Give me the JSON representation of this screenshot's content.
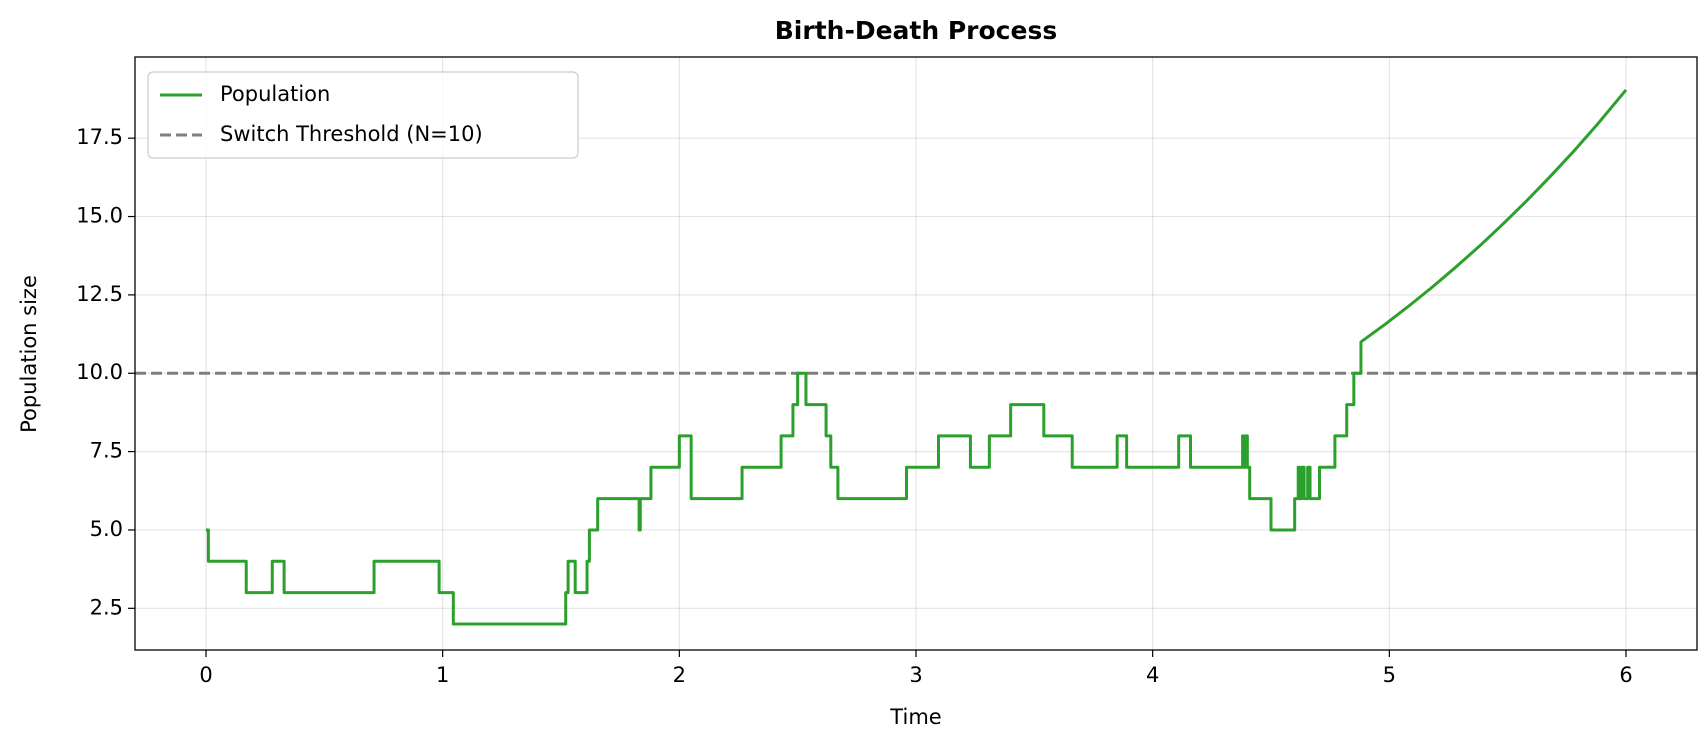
{
  "chart_data": {
    "type": "line",
    "title": "Birth-Death Process",
    "x_label": "Time",
    "y_label": "Population size",
    "xlim": [
      -0.3,
      6.3
    ],
    "ylim": [
      1.17,
      20.09
    ],
    "xticks": [
      0,
      1,
      2,
      3,
      4,
      5,
      6
    ],
    "yticks": [
      2.5,
      {
        "value": 5,
        "label": "5.0"
      },
      7.5,
      {
        "value": 10,
        "label": "10.0"
      },
      12.5,
      {
        "value": 15,
        "label": "15.0"
      },
      17.5
    ],
    "grid": true,
    "legend": "upper left",
    "series": [
      {
        "name": "Population",
        "color": "#2ca02c",
        "x": [
          0,
          0.01,
          0.01,
          0.17,
          0.17,
          0.28,
          0.28,
          0.33,
          0.33,
          0.71,
          0.71,
          0.985,
          0.985,
          1.045,
          1.045,
          1.52,
          1.52,
          1.53,
          1.53,
          1.56,
          1.56,
          1.61,
          1.61,
          1.62,
          1.62,
          1.655,
          1.655,
          1.83,
          1.83,
          1.835,
          1.835,
          1.88,
          1.88,
          2.0,
          2.0,
          2.05,
          2.05,
          2.265,
          2.265,
          2.43,
          2.43,
          2.48,
          2.48,
          2.5,
          2.5,
          2.535,
          2.535,
          2.62,
          2.62,
          2.64,
          2.64,
          2.67,
          2.67,
          2.96,
          2.96,
          3.095,
          3.095,
          3.23,
          3.23,
          3.31,
          3.31,
          3.4,
          3.4,
          3.54,
          3.54,
          3.66,
          3.66,
          3.85,
          3.85,
          3.89,
          3.89,
          4.11,
          4.11,
          4.16,
          4.16,
          4.38,
          4.38,
          4.385,
          4.385,
          4.395,
          4.395,
          4.4,
          4.4,
          4.41,
          4.41,
          4.5,
          4.5,
          4.6,
          4.6,
          4.615,
          4.615,
          4.62,
          4.62,
          4.63,
          4.63,
          4.64,
          4.64,
          4.655,
          4.655,
          4.665,
          4.665,
          4.705,
          4.705,
          4.77,
          4.77,
          4.82,
          4.82,
          4.85,
          4.85,
          4.88,
          4.88,
          4.98,
          5.08,
          5.18,
          5.28,
          5.38,
          5.48,
          5.58,
          5.68,
          5.78,
          5.88,
          6.0
        ],
        "values": [
          5,
          5,
          4,
          4,
          3,
          3,
          4,
          4,
          3,
          3,
          4,
          4,
          3,
          3,
          2,
          2,
          3,
          3,
          4,
          4,
          3,
          3,
          4,
          4,
          5,
          5,
          6,
          6,
          5,
          5,
          6,
          6,
          7,
          7,
          8,
          8,
          6,
          6,
          7,
          7,
          8,
          8,
          9,
          9,
          10,
          10,
          9,
          9,
          8,
          8,
          7,
          7,
          6,
          6,
          7,
          7,
          8,
          8,
          7,
          7,
          8,
          8,
          9,
          9,
          8,
          8,
          7,
          7,
          8,
          8,
          7,
          7,
          8,
          8,
          7,
          7,
          8,
          8,
          7,
          7,
          8,
          8,
          7,
          7,
          6,
          6,
          5,
          5,
          6,
          6,
          7,
          7,
          6,
          6,
          7,
          7,
          6,
          6,
          7,
          7,
          6,
          6,
          7,
          7,
          8,
          8,
          9,
          9,
          10,
          10,
          11,
          11.55,
          12.13,
          12.74,
          13.38,
          14.05,
          14.76,
          15.5,
          16.28,
          17.09,
          17.95,
          19.04
        ]
      }
    ],
    "threshold": {
      "name": "Switch Threshold (N=10)",
      "value": 10,
      "color": "#7f7f7f"
    }
  }
}
